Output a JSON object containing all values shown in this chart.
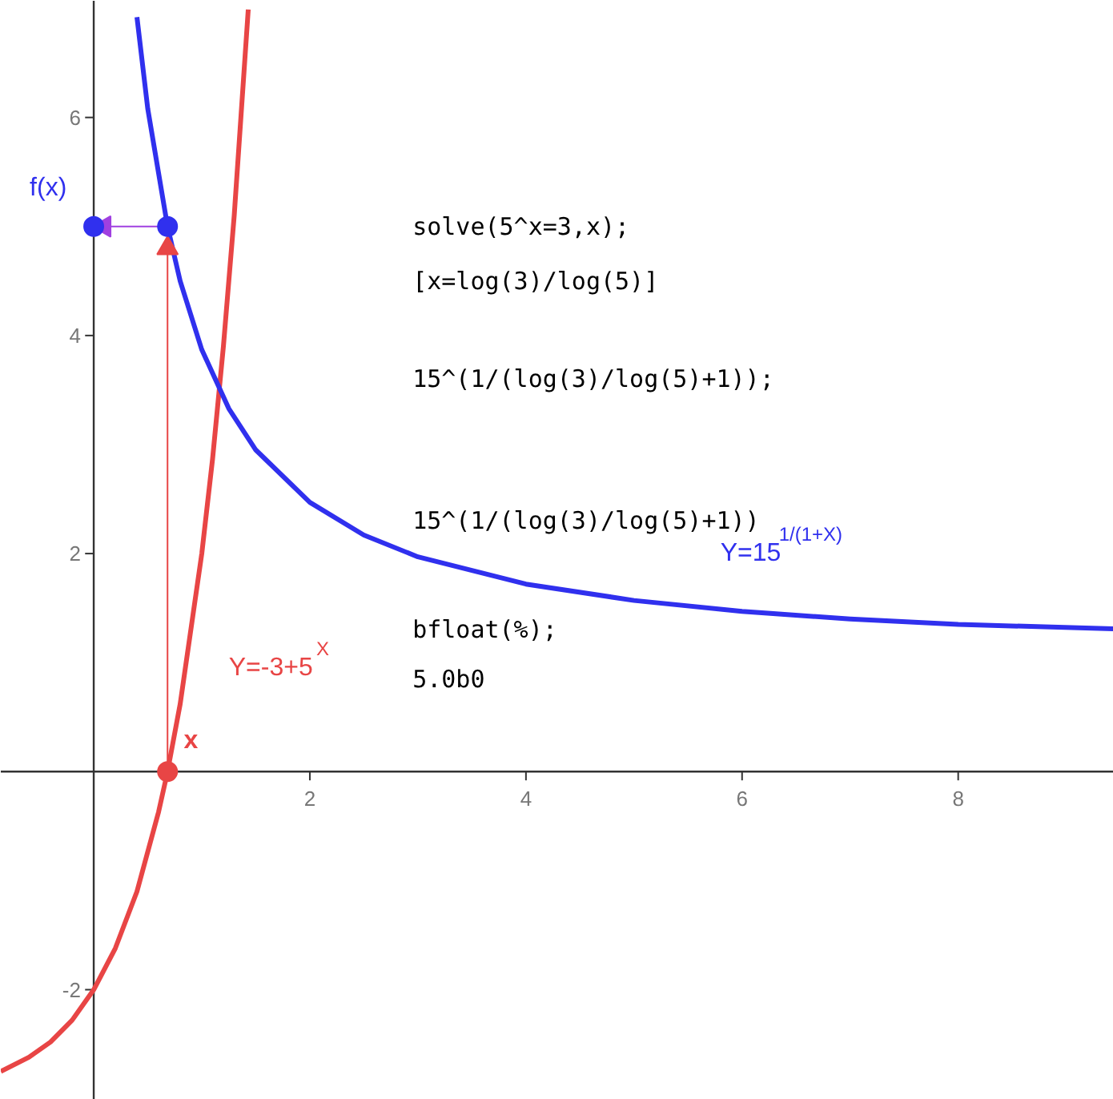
{
  "chart_data": {
    "type": "line",
    "xlim": [
      -0.86,
      9.44
    ],
    "ylim": [
      -3.01,
      7.07
    ],
    "xticks": [
      2,
      4,
      6,
      8
    ],
    "yticks": [
      -2,
      2,
      4,
      6
    ],
    "series": [
      {
        "name": "Y=-3+5$^{X}$",
        "color": "#e84545",
        "x": [
          -0.86,
          -0.6,
          -0.4,
          -0.2,
          0,
          0.2,
          0.4,
          0.6,
          0.683,
          0.8,
          1.0,
          1.1,
          1.2,
          1.3,
          1.43
        ],
        "values": [
          -2.75,
          -2.62,
          -2.48,
          -2.28,
          -2,
          -1.62,
          -1.1,
          -0.37,
          0,
          0.62,
          2,
          2.87,
          3.9,
          5.1,
          6.99
        ]
      },
      {
        "name": "Y=15$^{1/(1+X)}$",
        "color": "#3030ee",
        "x": [
          0.4,
          0.5,
          0.683,
          0.8,
          1.0,
          1.25,
          1.5,
          2,
          2.5,
          3,
          4,
          5,
          6,
          7,
          8,
          9.44
        ],
        "values": [
          6.92,
          6.08,
          5.0,
          4.5,
          3.87,
          3.33,
          2.95,
          2.47,
          2.17,
          1.97,
          1.72,
          1.57,
          1.47,
          1.4,
          1.35,
          1.31
        ]
      },
      {
        "type": "line",
        "marker": "triangle",
        "color": "#e84545",
        "x": [
          0.683,
          0.683
        ],
        "values": [
          0,
          4.8
        ]
      },
      {
        "type": "line",
        "marker": "triangle",
        "color": "#a040e0",
        "x": [
          0.683,
          0.1
        ],
        "values": [
          5,
          5
        ]
      },
      {
        "type": "scatter",
        "marker": "circle",
        "color": "#e84545",
        "x": [
          0.683
        ],
        "values": [
          0
        ]
      },
      {
        "type": "scatter",
        "marker": "circle",
        "color": "#3030ee",
        "x": [
          0.683,
          0
        ],
        "values": [
          5,
          5
        ]
      }
    ],
    "annotations": [
      {
        "text": "x",
        "x": 0.683,
        "y": 0
      },
      {
        "text": "f(x)",
        "x": 0,
        "y": 5
      },
      "solve(5^x=3,x);",
      "[x=log(3)/log(5)]",
      "15^(1/(log(3)/log(5)+1));",
      "15^(1/(log(3)/log(5)+1))",
      "bfloat(%);",
      "5.0b0"
    ]
  }
}
